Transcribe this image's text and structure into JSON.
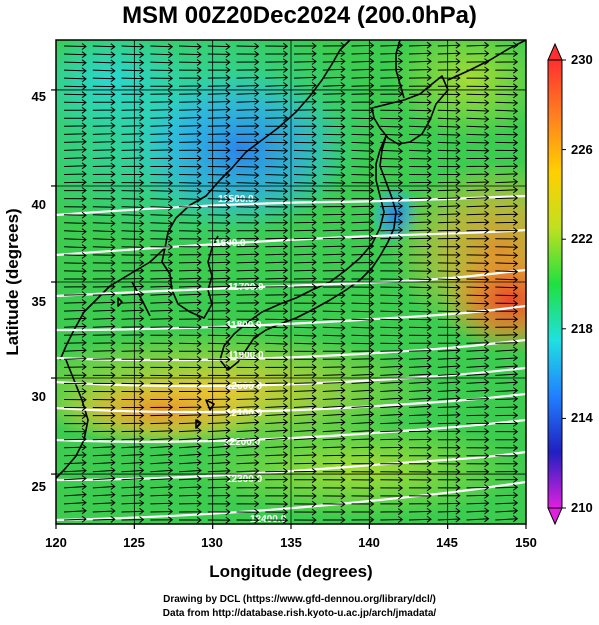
{
  "title": "MSM 00Z20Dec2024 (200.0hPa)",
  "x_axis": {
    "label": "Longitude (degrees)",
    "range": [
      120,
      150
    ],
    "ticks": [
      "120",
      "125",
      "130",
      "135",
      "140",
      "145",
      "150"
    ]
  },
  "y_axis": {
    "label": "Latitude  (degrees)",
    "range": [
      22.4,
      47.6
    ],
    "ticks": [
      "25",
      "30",
      "35",
      "40",
      "45"
    ]
  },
  "colorbar": {
    "range": [
      210,
      230
    ],
    "labels": [
      "230",
      "226",
      "222",
      "218",
      "214",
      "210"
    ],
    "colors": [
      "#e020e0",
      "#2020c0",
      "#2080ff",
      "#20e0e0",
      "#20e040",
      "#c0e020",
      "#ffd000",
      "#ff8020",
      "#ff3030"
    ]
  },
  "contours": {
    "color": "#ffffff",
    "labels": [
      "11500.0",
      "11600.0",
      "11700.0",
      "11800.0",
      "11900.0",
      "12000.0",
      "12100.0",
      "12200.0",
      "12300.0",
      "12400.0"
    ]
  },
  "wind_arrows": {
    "color": "#000000",
    "direction": "westerly (eastward)"
  },
  "coastline_color": "#000000",
  "credits": {
    "line1": "Drawing by DCL (https://www.gfd-dennou.org/library/dcl/)",
    "line2": "Data from http://database.rish.kyoto-u.ac.jp/arch/jmadata/"
  }
}
